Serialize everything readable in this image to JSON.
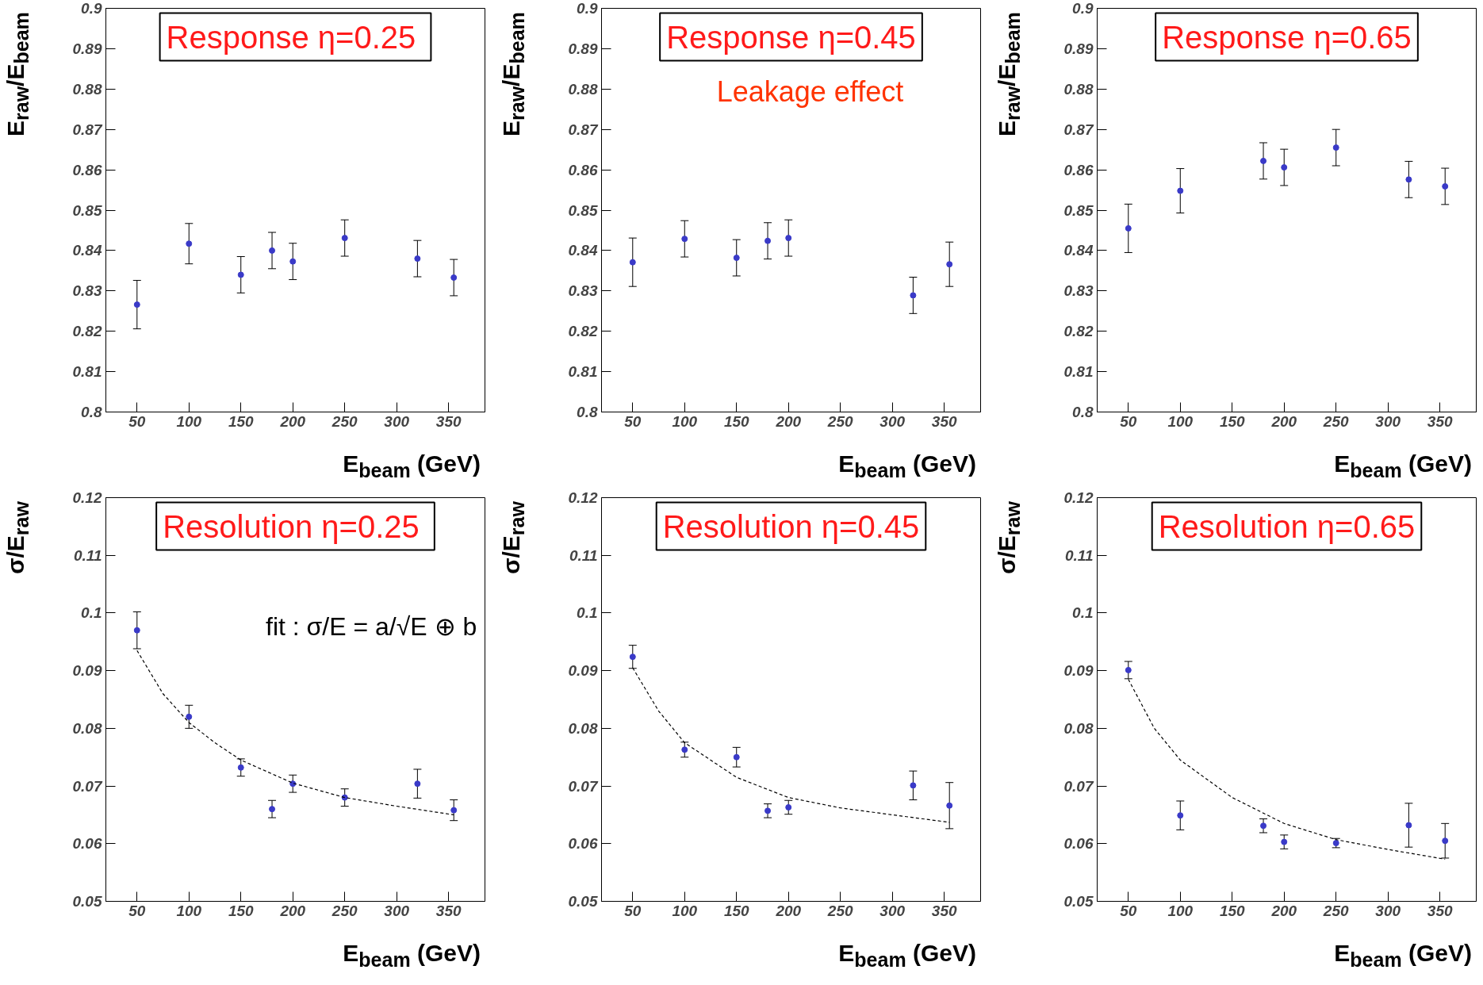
{
  "chart_data": [
    {
      "type": "scatter",
      "title": "Response  η=0.25",
      "xlabel": "E$_{beam}$ (GeV)",
      "ylabel": "E$_{raw}$/E$_{beam}$",
      "xlim": [
        20,
        385
      ],
      "ylim": [
        0.8,
        0.9
      ],
      "xticks": [
        50,
        100,
        150,
        200,
        250,
        300,
        350
      ],
      "yticks": [
        0.8,
        0.81,
        0.82,
        0.83,
        0.84,
        0.85,
        0.86,
        0.87,
        0.88,
        0.89,
        0.9
      ],
      "grid": false,
      "marker": "circle",
      "series": [
        {
          "color": "#3a3ac8",
          "x": [
            50,
            100,
            150,
            180,
            200,
            250,
            320,
            355
          ],
          "values": [
            0.8266,
            0.8417,
            0.834,
            0.84,
            0.8373,
            0.8431,
            0.838,
            0.8333
          ],
          "errors": [
            0.006,
            0.005,
            0.0045,
            0.0045,
            0.0045,
            0.0045,
            0.0045,
            0.0045
          ]
        }
      ]
    },
    {
      "type": "scatter",
      "title": "Response η=0.45",
      "xlabel": "E$_{beam}$ (GeV)",
      "ylabel": "E$_{raw}$/E$_{beam}$",
      "xlim": [
        20,
        385
      ],
      "ylim": [
        0.8,
        0.9
      ],
      "xticks": [
        50,
        100,
        150,
        200,
        250,
        300,
        350
      ],
      "yticks": [
        0.8,
        0.81,
        0.82,
        0.83,
        0.84,
        0.85,
        0.86,
        0.87,
        0.88,
        0.89,
        0.9
      ],
      "grid": false,
      "marker": "circle",
      "annotations": [
        "Leakage effect"
      ],
      "series": [
        {
          "color": "#3a3ac8",
          "x": [
            50,
            100,
            150,
            180,
            200,
            320,
            355
          ],
          "values": [
            0.8371,
            0.8429,
            0.8382,
            0.8424,
            0.8431,
            0.8289,
            0.8366
          ],
          "errors": [
            0.006,
            0.0045,
            0.0045,
            0.0045,
            0.0045,
            0.0045,
            0.0055
          ]
        }
      ]
    },
    {
      "type": "scatter",
      "title": "Response η=0.65",
      "xlabel": "E$_{beam}$ (GeV)",
      "ylabel": "E$_{raw}$/E$_{beam}$",
      "xlim": [
        20,
        385
      ],
      "ylim": [
        0.8,
        0.9
      ],
      "xticks": [
        50,
        100,
        150,
        200,
        250,
        300,
        350
      ],
      "yticks": [
        0.8,
        0.81,
        0.82,
        0.83,
        0.84,
        0.85,
        0.86,
        0.87,
        0.88,
        0.89,
        0.9
      ],
      "grid": false,
      "marker": "circle",
      "series": [
        {
          "color": "#3a3ac8",
          "x": [
            50,
            100,
            180,
            200,
            250,
            320,
            355
          ],
          "values": [
            0.8455,
            0.8548,
            0.8622,
            0.8606,
            0.8655,
            0.8576,
            0.8559
          ],
          "errors": [
            0.006,
            0.0055,
            0.0045,
            0.0045,
            0.0045,
            0.0045,
            0.0045
          ]
        }
      ]
    },
    {
      "type": "scatter",
      "title": "Resolution  η=0.25",
      "xlabel": "E$_{beam}$ (GeV)",
      "ylabel": "σ/E$_{raw}$",
      "xlim": [
        20,
        385
      ],
      "ylim": [
        0.05,
        0.12
      ],
      "xticks": [
        50,
        100,
        150,
        200,
        250,
        300,
        350
      ],
      "yticks": [
        0.05,
        0.06,
        0.07,
        0.08,
        0.09,
        0.1,
        0.11,
        0.12
      ],
      "grid": false,
      "marker": "circle",
      "annotations": [
        "fit : σ/E = a/√E ⊕ b"
      ],
      "series": [
        {
          "color": "#3a3ac8",
          "x": [
            50,
            100,
            150,
            180,
            200,
            250,
            320,
            355
          ],
          "values": [
            0.097,
            0.082,
            0.0732,
            0.066,
            0.0704,
            0.068,
            0.0704,
            0.0658
          ],
          "errors": [
            0.0032,
            0.002,
            0.0015,
            0.0015,
            0.0015,
            0.0015,
            0.0025,
            0.0018
          ]
        },
        {
          "type": "line",
          "marker": "none",
          "line_style": "dashed",
          "color": "#000000",
          "x": [
            50,
            75,
            100,
            125,
            150,
            200,
            250,
            300,
            355
          ],
          "values": [
            0.0935,
            0.086,
            0.081,
            0.0775,
            0.0745,
            0.0705,
            0.068,
            0.0665,
            0.065
          ]
        }
      ]
    },
    {
      "type": "scatter",
      "title": "Resolution η=0.45",
      "xlabel": "E$_{beam}$ (GeV)",
      "ylabel": "σ/E$_{raw}$",
      "xlim": [
        20,
        385
      ],
      "ylim": [
        0.05,
        0.12
      ],
      "xticks": [
        50,
        100,
        150,
        200,
        250,
        300,
        350
      ],
      "yticks": [
        0.05,
        0.06,
        0.07,
        0.08,
        0.09,
        0.1,
        0.11,
        0.12
      ],
      "grid": false,
      "marker": "circle",
      "series": [
        {
          "color": "#3a3ac8",
          "x": [
            50,
            100,
            150,
            180,
            200,
            320,
            355
          ],
          "values": [
            0.0924,
            0.0763,
            0.075,
            0.0657,
            0.0663,
            0.0701,
            0.0666
          ],
          "errors": [
            0.002,
            0.0013,
            0.0017,
            0.0012,
            0.0012,
            0.0025,
            0.004
          ]
        },
        {
          "type": "line",
          "marker": "none",
          "line_style": "dashed",
          "color": "#000000",
          "x": [
            50,
            75,
            100,
            150,
            200,
            250,
            300,
            355
          ],
          "values": [
            0.0905,
            0.083,
            0.0775,
            0.0715,
            0.068,
            0.0662,
            0.065,
            0.0637
          ]
        }
      ]
    },
    {
      "type": "scatter",
      "title": "Resolution η=0.65",
      "xlabel": "E$_{beam}$ (GeV)",
      "ylabel": "σ/E$_{raw}$",
      "xlim": [
        20,
        385
      ],
      "ylim": [
        0.05,
        0.12
      ],
      "xticks": [
        50,
        100,
        150,
        200,
        250,
        300,
        350
      ],
      "yticks": [
        0.05,
        0.06,
        0.07,
        0.08,
        0.09,
        0.1,
        0.11,
        0.12
      ],
      "grid": false,
      "marker": "circle",
      "series": [
        {
          "color": "#3a3ac8",
          "x": [
            50,
            100,
            180,
            200,
            250,
            320,
            355
          ],
          "values": [
            0.0901,
            0.0649,
            0.0631,
            0.0603,
            0.0601,
            0.0632,
            0.0605
          ],
          "errors": [
            0.0015,
            0.0025,
            0.0012,
            0.0012,
            0.0008,
            0.0038,
            0.003
          ]
        },
        {
          "type": "line",
          "marker": "none",
          "line_style": "dashed",
          "color": "#000000",
          "x": [
            50,
            75,
            100,
            150,
            200,
            250,
            300,
            355
          ],
          "values": [
            0.0885,
            0.08,
            0.0745,
            0.068,
            0.0635,
            0.0607,
            0.059,
            0.0573
          ]
        }
      ]
    }
  ]
}
